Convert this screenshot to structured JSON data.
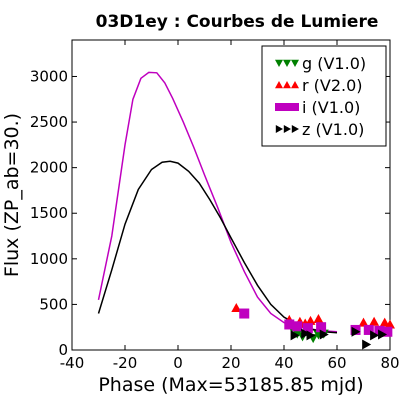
{
  "chart_data": {
    "type": "scatter",
    "title": "03D1ey : Courbes de Lumiere",
    "xlabel": "Phase (Max=53185.85 mjd)",
    "ylabel": "Flux (ZP_ab=30.)",
    "xlim": [
      -40,
      80
    ],
    "ylim": [
      0,
      3400
    ],
    "x_ticks": [
      "-40",
      "-20",
      "0",
      "20",
      "40",
      "60",
      "80"
    ],
    "y_ticks": [
      "0",
      "500",
      "1000",
      "1500",
      "2000",
      "2500",
      "3000"
    ],
    "legend_position": "top-right",
    "series": [
      {
        "name": "g (V1.0)",
        "marker": "triangle-down",
        "color": "#008000",
        "points": [
          [
            43,
            240
          ],
          [
            45,
            180
          ],
          [
            47,
            150
          ],
          [
            49,
            210
          ],
          [
            51,
            130
          ],
          [
            53,
            170
          ],
          [
            55,
            180
          ]
        ]
      },
      {
        "name": "r (V2.0)",
        "marker": "triangle-up",
        "color": "#ff0000",
        "points": [
          [
            22,
            460
          ],
          [
            42,
            330
          ],
          [
            46,
            310
          ],
          [
            48,
            290
          ],
          [
            50,
            320
          ],
          [
            53,
            340
          ],
          [
            70,
            300
          ],
          [
            74,
            310
          ],
          [
            78,
            300
          ],
          [
            80,
            280
          ]
        ]
      },
      {
        "name": "i (V1.0)",
        "marker": "square",
        "color": "#bf00bf",
        "points": [
          [
            25,
            400
          ],
          [
            42,
            280
          ],
          [
            45,
            260
          ],
          [
            49,
            240
          ],
          [
            54,
            250
          ],
          [
            67,
            220
          ],
          [
            72,
            220
          ],
          [
            76,
            210
          ],
          [
            79,
            200
          ]
        ]
      },
      {
        "name": "z (V1.0)",
        "marker": "triangle-right",
        "color": "#000000",
        "points": [
          [
            44,
            160
          ],
          [
            48,
            180
          ],
          [
            50,
            160
          ],
          [
            55,
            170
          ],
          [
            67,
            200
          ],
          [
            71,
            60
          ],
          [
            74,
            160
          ],
          [
            77,
            170
          ]
        ]
      }
    ],
    "curves": [
      {
        "color": "#bf00bf",
        "points": [
          [
            -30,
            550
          ],
          [
            -25,
            1250
          ],
          [
            -20,
            2250
          ],
          [
            -17,
            2750
          ],
          [
            -14,
            2980
          ],
          [
            -11,
            3045
          ],
          [
            -8,
            3040
          ],
          [
            -5,
            2930
          ],
          [
            -2,
            2760
          ],
          [
            2,
            2500
          ],
          [
            6,
            2220
          ],
          [
            10,
            1920
          ],
          [
            15,
            1560
          ],
          [
            20,
            1180
          ],
          [
            25,
            860
          ],
          [
            30,
            580
          ],
          [
            35,
            400
          ],
          [
            40,
            300
          ],
          [
            45,
            260
          ],
          [
            50,
            230
          ],
          [
            55,
            210
          ],
          [
            60,
            200
          ]
        ]
      },
      {
        "color": "#000000",
        "points": [
          [
            -30,
            400
          ],
          [
            -25,
            880
          ],
          [
            -20,
            1380
          ],
          [
            -15,
            1760
          ],
          [
            -10,
            1980
          ],
          [
            -6,
            2060
          ],
          [
            -3,
            2070
          ],
          [
            0,
            2050
          ],
          [
            4,
            1960
          ],
          [
            8,
            1830
          ],
          [
            12,
            1650
          ],
          [
            16,
            1450
          ],
          [
            20,
            1230
          ],
          [
            25,
            960
          ],
          [
            30,
            710
          ],
          [
            35,
            500
          ],
          [
            40,
            360
          ],
          [
            45,
            280
          ],
          [
            50,
            230
          ],
          [
            55,
            200
          ],
          [
            60,
            190
          ]
        ]
      }
    ]
  }
}
